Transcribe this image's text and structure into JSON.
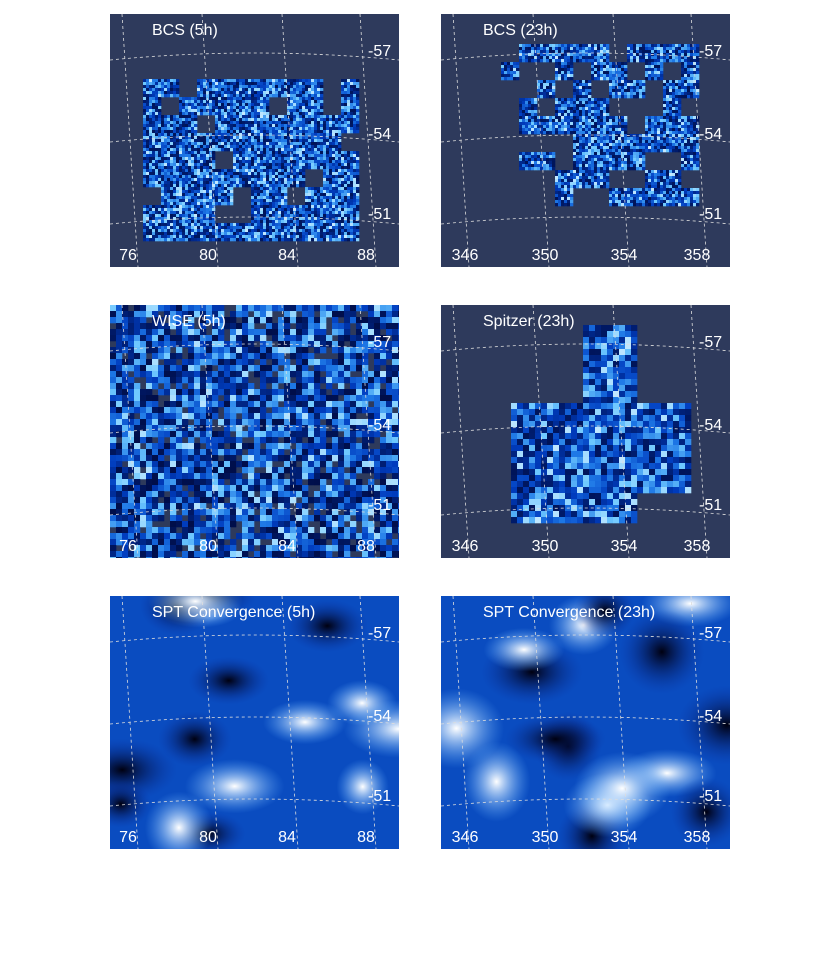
{
  "panels": [
    {
      "title": "BCS (5h)",
      "x_labels": [
        "76",
        "80",
        "84",
        "88"
      ],
      "y_labels": [
        "-57",
        "-54",
        "-51"
      ]
    },
    {
      "title": "BCS (23h)",
      "x_labels": [
        "346",
        "350",
        "354",
        "358"
      ],
      "y_labels": [
        "-57",
        "-54",
        "-51"
      ]
    },
    {
      "title": "WISE (5h)",
      "x_labels": [
        "76",
        "80",
        "84",
        "88"
      ],
      "y_labels": [
        "-57",
        "-54",
        "-51"
      ]
    },
    {
      "title": "Spitzer (23h)",
      "x_labels": [
        "346",
        "350",
        "354",
        "358"
      ],
      "y_labels": [
        "-57",
        "-54",
        "-51"
      ]
    },
    {
      "title": "SPT Convergence (5h)",
      "x_labels": [
        "76",
        "80",
        "84",
        "88"
      ],
      "y_labels": [
        "-57",
        "-54",
        "-51"
      ]
    },
    {
      "title": "SPT Convergence (23h)",
      "x_labels": [
        "346",
        "350",
        "354",
        "358"
      ],
      "y_labels": [
        "-57",
        "-54",
        "-51"
      ]
    }
  ]
}
